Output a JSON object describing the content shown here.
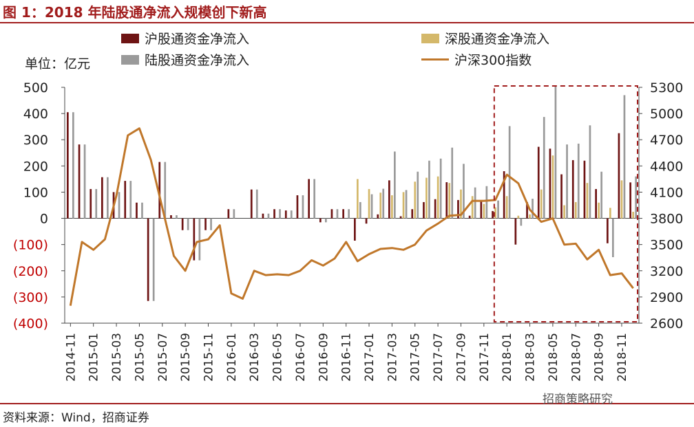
{
  "title": "图 1：2018 年陆股通净流入规模创下新高",
  "unit_label": "单位：亿元",
  "source": "资料来源：Wind，招商证券",
  "watermark": "招商策略研究",
  "colors": {
    "sh": "#6e1414",
    "sz": "#d4b86a",
    "lg": "#9a9a9a",
    "index": "#c0772a",
    "box": "#a11c1c",
    "neg_label": "#c00000"
  },
  "chart_data": {
    "type": "bar",
    "legend": {
      "sh": "沪股通资金净流入",
      "sz": "深股通资金净流入",
      "lg": "陆股通资金净流入",
      "index": "沪深300指数"
    },
    "categories": [
      "2014-11",
      "2014-12",
      "2015-01",
      "2015-02",
      "2015-03",
      "2015-04",
      "2015-05",
      "2015-06",
      "2015-07",
      "2015-08",
      "2015-09",
      "2015-10",
      "2015-11",
      "2015-12",
      "2016-01",
      "2016-02",
      "2016-03",
      "2016-04",
      "2016-05",
      "2016-06",
      "2016-07",
      "2016-08",
      "2016-09",
      "2016-10",
      "2016-11",
      "2016-12",
      "2017-01",
      "2017-02",
      "2017-03",
      "2017-04",
      "2017-05",
      "2017-06",
      "2017-07",
      "2017-08",
      "2017-09",
      "2017-10",
      "2017-11",
      "2017-12",
      "2018-01",
      "2018-02",
      "2018-03",
      "2018-04",
      "2018-05",
      "2018-06",
      "2018-07",
      "2018-08",
      "2018-09",
      "2018-10",
      "2018-11",
      "2018-12"
    ],
    "x_tick_labels": [
      "2014-11",
      "2015-01",
      "2015-03",
      "2015-05",
      "2015-07",
      "2015-09",
      "2015-11",
      "2016-01",
      "2016-03",
      "2016-05",
      "2016-07",
      "2016-09",
      "2016-11",
      "2017-01",
      "2017-03",
      "2017-05",
      "2017-07",
      "2017-09",
      "2017-11",
      "2018-01",
      "2018-03",
      "2018-05",
      "2018-07",
      "2018-09",
      "2018-11"
    ],
    "series": [
      {
        "key": "sh",
        "name": "沪股通资金净流入",
        "values": [
          405,
          282,
          112,
          157,
          100,
          143,
          60,
          -315,
          215,
          12,
          -45,
          -160,
          -45,
          0,
          35,
          0,
          110,
          18,
          35,
          30,
          88,
          150,
          -15,
          35,
          35,
          -85,
          -20,
          15,
          145,
          8,
          35,
          62,
          73,
          138,
          70,
          10,
          68,
          28,
          180,
          -100,
          62,
          273,
          266,
          168,
          222,
          220,
          112,
          -95,
          325,
          137
        ]
      },
      {
        "key": "sz",
        "name": "深股通资金净流入",
        "values": [
          0,
          0,
          0,
          0,
          0,
          0,
          0,
          0,
          0,
          0,
          0,
          0,
          0,
          0,
          0,
          0,
          0,
          0,
          0,
          0,
          0,
          0,
          0,
          0,
          0,
          150,
          112,
          98,
          88,
          100,
          140,
          155,
          160,
          135,
          110,
          85,
          55,
          42,
          85,
          10,
          15,
          110,
          240,
          50,
          62,
          135,
          60,
          40,
          145,
          25
        ]
      },
      {
        "key": "lg",
        "name": "陆股通资金净流入",
        "values": [
          405,
          282,
          112,
          157,
          100,
          143,
          60,
          -315,
          215,
          12,
          -45,
          -160,
          -45,
          0,
          35,
          0,
          110,
          18,
          35,
          30,
          88,
          150,
          -15,
          35,
          35,
          62,
          92,
          113,
          255,
          108,
          178,
          220,
          228,
          270,
          208,
          118,
          123,
          68,
          352,
          -28,
          75,
          387,
          503,
          282,
          285,
          355,
          178,
          -148,
          470,
          160
        ]
      },
      {
        "key": "index",
        "name": "沪深300指数",
        "axis": "right",
        "values": [
          2800,
          3530,
          3440,
          3560,
          4060,
          4750,
          4830,
          4470,
          3920,
          3370,
          3200,
          3530,
          3560,
          3720,
          2940,
          2880,
          3200,
          3150,
          3160,
          3150,
          3200,
          3320,
          3260,
          3340,
          3530,
          3310,
          3390,
          3450,
          3460,
          3440,
          3500,
          3660,
          3740,
          3830,
          3840,
          4000,
          4000,
          4010,
          4300,
          4200,
          3900,
          3760,
          3800,
          3500,
          3510,
          3330,
          3440,
          3150,
          3170,
          3000
        ]
      }
    ],
    "y_left": {
      "min": -400,
      "max": 500,
      "ticks": [
        "500",
        "400",
        "300",
        "200",
        "100",
        "0",
        "(100)",
        "(200)",
        "(300)",
        "(400)"
      ]
    },
    "y_right": {
      "min": 2600,
      "max": 5300,
      "ticks": [
        "5300",
        "5000",
        "4700",
        "4400",
        "4100",
        "3800",
        "3500",
        "3200",
        "2900",
        "2600"
      ]
    },
    "highlight_range": [
      "2018-01",
      "2018-12"
    ],
    "grid": false,
    "legend_placement": "top"
  }
}
